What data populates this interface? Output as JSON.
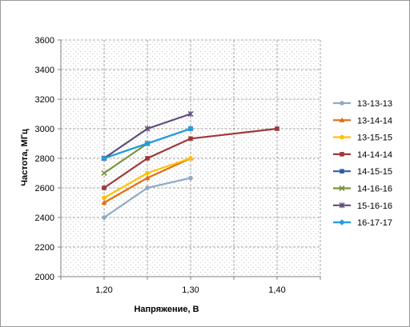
{
  "chart_data": {
    "type": "line",
    "title": "",
    "xlabel": "Напряжение, В",
    "ylabel": "Частота, МГц",
    "xlim": [
      1.15,
      1.45
    ],
    "ylim": [
      2000,
      3600
    ],
    "x_tick_labels": [
      "1,20",
      "1,30",
      "1,40"
    ],
    "x_tick_values": [
      1.2,
      1.3,
      1.4
    ],
    "y_tick_labels": [
      "2000",
      "2200",
      "2400",
      "2600",
      "2800",
      "3000",
      "3200",
      "3400",
      "3600"
    ],
    "y_tick_values": [
      2000,
      2200,
      2400,
      2600,
      2800,
      3000,
      3200,
      3400,
      3600
    ],
    "grid": "dashed, both axes",
    "legend_position": "right",
    "series": [
      {
        "name": "13-13-13",
        "color": "#8ea9c8",
        "marker": "circle",
        "x": [
          1.2,
          1.25,
          1.3
        ],
        "y": [
          2400,
          2600,
          2667
        ]
      },
      {
        "name": "13-14-14",
        "color": "#e46c0a",
        "marker": "triangle",
        "x": [
          1.2,
          1.25,
          1.3
        ],
        "y": [
          2500,
          2667,
          2800
        ]
      },
      {
        "name": "13-15-15",
        "color": "#ffc000",
        "marker": "circle",
        "x": [
          1.2,
          1.25,
          1.3
        ],
        "y": [
          2533,
          2700,
          2800
        ]
      },
      {
        "name": "14-14-14",
        "color": "#a0363a",
        "marker": "square",
        "x": [
          1.2,
          1.25,
          1.3,
          1.4
        ],
        "y": [
          2600,
          2800,
          2933,
          3000
        ]
      },
      {
        "name": "14-15-15",
        "color": "#2f5ea8",
        "marker": "square",
        "x": [
          1.2,
          1.25,
          1.3
        ],
        "y": [
          2800,
          2900,
          3000
        ]
      },
      {
        "name": "14-16-16",
        "color": "#77933c",
        "marker": "x",
        "x": [
          1.2,
          1.25
        ],
        "y": [
          2700,
          2900
        ]
      },
      {
        "name": "15-16-16",
        "color": "#604a7b",
        "marker": "star",
        "x": [
          1.2,
          1.25,
          1.3
        ],
        "y": [
          2800,
          3000,
          3100
        ]
      },
      {
        "name": "16-17-17",
        "color": "#1f9fe0",
        "marker": "diamond",
        "x": [
          1.2,
          1.25,
          1.3
        ],
        "y": [
          2800,
          2900,
          3000
        ]
      }
    ]
  }
}
